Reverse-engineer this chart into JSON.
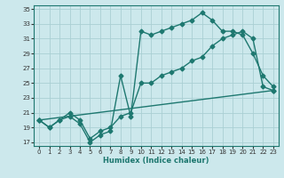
{
  "xlabel": "Humidex (Indice chaleur)",
  "bg_color": "#cce8ec",
  "grid_color": "#aacfd4",
  "line_color": "#1e7870",
  "spine_color": "#1e7870",
  "xlim": [
    -0.5,
    23.5
  ],
  "ylim": [
    16.5,
    35.5
  ],
  "yticks": [
    17,
    19,
    21,
    23,
    25,
    27,
    29,
    31,
    33,
    35
  ],
  "xticks": [
    0,
    1,
    2,
    3,
    4,
    5,
    6,
    7,
    8,
    9,
    10,
    11,
    12,
    13,
    14,
    15,
    16,
    17,
    18,
    19,
    20,
    21,
    22,
    23
  ],
  "line1_x": [
    0,
    1,
    2,
    3,
    4,
    5,
    6,
    7,
    8,
    9,
    10,
    11,
    12,
    13,
    14,
    15,
    16,
    17,
    18,
    19,
    20,
    21,
    22,
    23
  ],
  "line1_y": [
    20,
    19,
    20,
    20.5,
    19.5,
    17,
    18,
    18.5,
    26,
    20.5,
    32,
    31.5,
    32,
    32.5,
    33,
    33.5,
    34.5,
    33.5,
    32,
    32,
    31.5,
    29,
    26,
    24.5
  ],
  "line2_x": [
    0,
    1,
    2,
    3,
    4,
    5,
    6,
    7,
    8,
    9,
    10,
    11,
    12,
    13,
    14,
    15,
    16,
    17,
    18,
    19,
    20,
    21,
    22,
    23
  ],
  "line2_y": [
    20,
    19,
    20,
    21,
    20,
    17.5,
    18.5,
    19,
    20.5,
    21,
    25,
    25,
    26,
    26.5,
    27,
    28,
    28.5,
    30,
    31,
    31.5,
    32,
    31,
    24.5,
    24
  ],
  "line3_x": [
    0,
    23
  ],
  "line3_y": [
    20,
    24
  ],
  "xlabel_fontsize": 6,
  "tick_fontsize": 5,
  "lw": 1.0,
  "ms": 2.5
}
